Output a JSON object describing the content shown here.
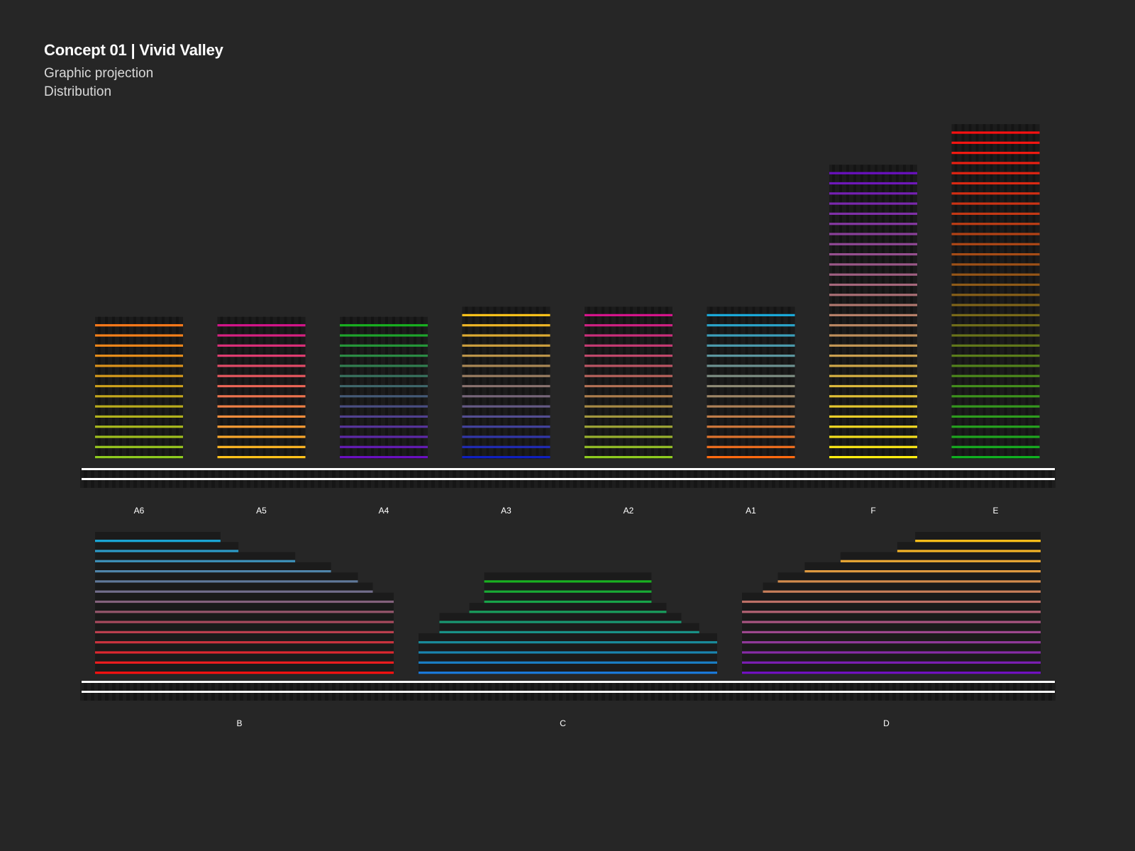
{
  "header": {
    "title": "Concept 01 | Vivid Valley",
    "subtitle": "Graphic projection",
    "subtitle2": "Distribution"
  },
  "colors": {
    "background": "#262626",
    "ground_line": "#ffffff"
  },
  "top_row": {
    "buildings": [
      {
        "label": "A6",
        "floors": 14,
        "colors": [
          "#8ecb1f",
          "#ff7a1a"
        ]
      },
      {
        "label": "A5",
        "floors": 14,
        "colors": [
          "#ffc21a",
          "#d4148a"
        ]
      },
      {
        "label": "A4",
        "floors": 14,
        "colors": [
          "#6a10c0",
          "#18b020"
        ]
      },
      {
        "label": "A3",
        "floors": 15,
        "colors": [
          "#1020c0",
          "#ffc21a"
        ]
      },
      {
        "label": "A2",
        "floors": 15,
        "colors": [
          "#8ecb1f",
          "#d4148a"
        ]
      },
      {
        "label": "A1",
        "floors": 15,
        "colors": [
          "#ff6a10",
          "#1aa8d8"
        ]
      },
      {
        "label": "F",
        "floors": 29,
        "colors": [
          "#ffee10",
          "#6a10c0"
        ]
      },
      {
        "label": "E",
        "floors": 33,
        "colors": [
          "#10b020",
          "#ff1010"
        ]
      }
    ]
  },
  "bottom_row": {
    "groups": [
      {
        "label": "B",
        "floors": 14,
        "align": "left",
        "colors": [
          "#ff1010",
          "#1aa8d8"
        ],
        "widths": [
          1,
          1,
          1,
          1,
          1,
          1,
          1,
          1,
          0.93,
          0.88,
          0.79,
          0.67,
          0.48,
          0.42
        ]
      },
      {
        "label": "C",
        "floors": 10,
        "align": "center-steps",
        "colors": [
          "#1a78d8",
          "#18b020"
        ],
        "steps": [
          [
            0,
            1
          ],
          [
            0,
            1
          ],
          [
            0,
            1
          ],
          [
            0,
            1
          ],
          [
            0.07,
            0.94
          ],
          [
            0.07,
            0.88
          ],
          [
            0.17,
            0.83
          ],
          [
            0.22,
            0.78
          ],
          [
            0.22,
            0.78
          ],
          [
            0.22,
            0.78
          ]
        ]
      },
      {
        "label": "D",
        "floors": 14,
        "align": "right",
        "colors": [
          "#7010c0",
          "#ffc21a"
        ],
        "widths": [
          1,
          1,
          1,
          1,
          1,
          1,
          1,
          1,
          0.93,
          0.88,
          0.79,
          0.67,
          0.48,
          0.42
        ]
      }
    ]
  }
}
